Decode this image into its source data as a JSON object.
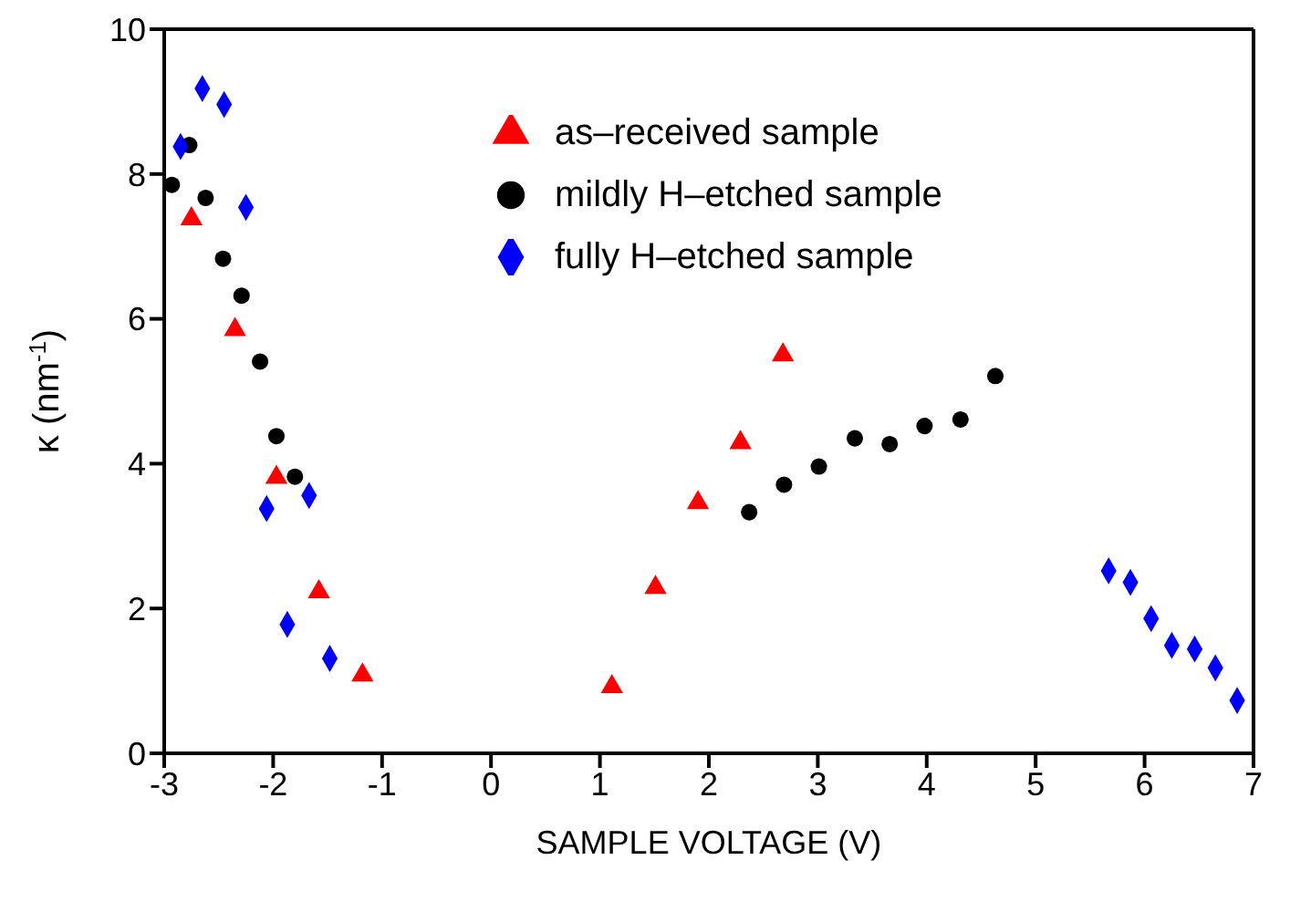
{
  "chart_data": {
    "type": "scatter",
    "xlabel": "SAMPLE VOLTAGE (V)",
    "ylabel": "κ (nm$^{-1}$)",
    "xlim": [
      -3,
      7
    ],
    "xticks": [
      -3,
      -2,
      -1,
      0,
      1,
      2,
      3,
      4,
      5,
      6,
      7
    ],
    "ylim": [
      0,
      10
    ],
    "yticks": [
      0,
      2,
      4,
      6,
      8,
      10
    ],
    "legend": "top",
    "series": [
      {
        "name": "as–received sample",
        "color": "#ff0000",
        "marker": "triangle",
        "x": [
          -2.75,
          -2.35,
          -1.97,
          -1.58,
          -1.18,
          1.11,
          1.51,
          1.9,
          2.29,
          2.68
        ],
        "values": [
          7.38,
          5.85,
          3.81,
          2.23,
          1.08,
          0.92,
          2.29,
          3.46,
          4.29,
          5.5
        ]
      },
      {
        "name": "mildly H–etched sample",
        "color": "#000000",
        "marker": "circle",
        "x": [
          -2.93,
          -2.77,
          -2.62,
          -2.46,
          -2.29,
          -2.12,
          -1.97,
          -1.8,
          2.37,
          2.69,
          3.01,
          3.34,
          3.66,
          3.98,
          4.31,
          4.63
        ],
        "values": [
          7.85,
          8.4,
          7.67,
          6.83,
          6.32,
          5.41,
          4.38,
          3.82,
          3.33,
          3.71,
          3.96,
          4.35,
          4.27,
          4.52,
          4.61,
          5.21
        ]
      },
      {
        "name": "fully H–etched sample",
        "color": "#0000ff",
        "marker": "diamond",
        "x": [
          -2.85,
          -2.65,
          -2.45,
          -2.25,
          -2.06,
          -1.87,
          -1.67,
          -1.48,
          5.67,
          5.87,
          6.06,
          6.25,
          6.46,
          6.65,
          6.85
        ],
        "values": [
          8.38,
          9.18,
          8.96,
          7.54,
          3.38,
          1.78,
          3.56,
          1.31,
          2.52,
          2.36,
          1.86,
          1.49,
          1.44,
          1.18,
          0.73
        ]
      }
    ]
  }
}
